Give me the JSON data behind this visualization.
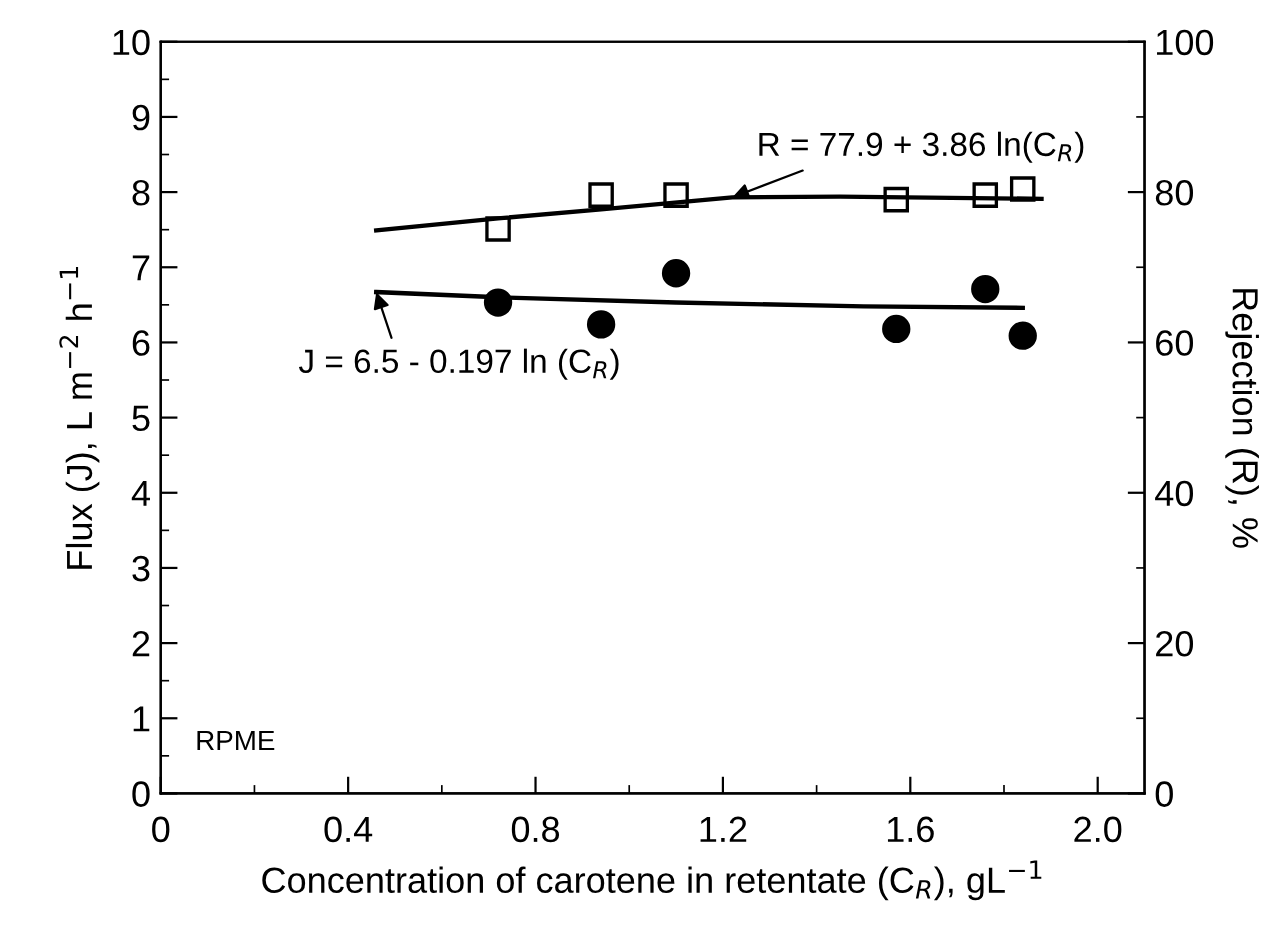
{
  "chart_data": {
    "type": "scatter",
    "xlabel": "Concentration of carotene in retentate (C$_{R}$), gL$^{−1}$",
    "ylabel": "Flux (J), L m$^{−2}$ h$^{−1}$",
    "y2label": "Rejection (R), %",
    "xlim": [
      0,
      2.1
    ],
    "xticks": [
      0,
      0.4,
      0.8,
      1.2,
      1.6,
      {
        "value": 2,
        "label": "2.0"
      }
    ],
    "ylim": [
      0,
      10
    ],
    "yticks": [
      0,
      1,
      2,
      3,
      4,
      5,
      6,
      7,
      8,
      9,
      10
    ],
    "y2lim": [
      0,
      100
    ],
    "y2ticks": [
      0,
      20,
      40,
      60,
      80,
      100
    ],
    "grid": false,
    "legend": false,
    "series": [
      {
        "marker": "circle",
        "color": "#000000",
        "x": [
          0.72,
          0.94,
          1.1,
          1.57,
          1.76,
          1.84
        ],
        "values": [
          6.53,
          6.24,
          6.92,
          6.18,
          6.71,
          6.09
        ]
      },
      {
        "marker": "square",
        "color": "#000000",
        "axis": "y2",
        "x": [
          0.72,
          0.94,
          1.1,
          1.57,
          1.76,
          1.84
        ],
        "values": [
          75.1,
          79.6,
          79.6,
          79.0,
          79.6,
          80.4
        ]
      },
      {
        "type": "line",
        "color": "#000000",
        "line_style": "solid",
        "x": [
          0.46,
          0.72,
          1.1,
          1.5,
          1.84
        ],
        "values": [
          6.67,
          6.6,
          6.53,
          6.48,
          6.46
        ]
      },
      {
        "type": "line",
        "color": "#000000",
        "line_style": "solid",
        "axis": "y2",
        "x": [
          0.46,
          0.72,
          0.94,
          1.22,
          1.45,
          1.88
        ],
        "values": [
          74.9,
          76.5,
          77.7,
          79.3,
          79.4,
          79.1
        ]
      }
    ],
    "annotations": [
      {
        "text": "R = 77.9 + 3.86 ln(C$_{R}$)",
        "x": 1.22,
        "y": 7.93
      },
      {
        "text": "J = 6.5 - 0.197 ln (C$_{R}$)",
        "x": 0.46,
        "y": 6.67
      },
      "RPME"
    ]
  }
}
